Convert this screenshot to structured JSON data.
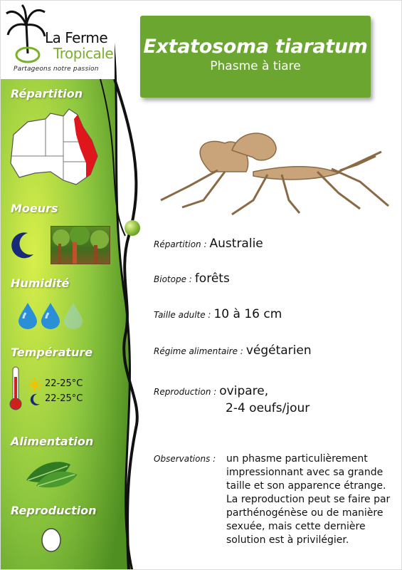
{
  "logo": {
    "line1": "La Ferme",
    "line2": "Tropicale",
    "tagline": "Partageons notre passion"
  },
  "header": {
    "species": "Extatosoma tiaratum",
    "common_name": "Phasme à tiare"
  },
  "sidebar": {
    "repartition_label": "Répartition",
    "moeurs_label": "Moeurs",
    "humidite_label": "Humidité",
    "humidity_level": {
      "filled": 2,
      "total": 3
    },
    "temperature_label": "Température",
    "temp_day": "22-25°C",
    "temp_night": "22-25°C",
    "alimentation_label": "Alimentation",
    "reproduction_label": "Reproduction"
  },
  "info": {
    "repartition_label": "Répartition :",
    "repartition_value": "Australie",
    "biotope_label": "Biotope :",
    "biotope_value": "forêts",
    "taille_label": "Taille adulte :",
    "taille_value": "10 à 16 cm",
    "regime_label": "Régime alimentaire :",
    "regime_value": "végétarien",
    "reproduction_label": "Reproduction :",
    "reproduction_value_1": "ovipare,",
    "reproduction_value_2": "2-4 oeufs/jour",
    "observations_label": "Observations :",
    "observations_value": "un phasme particulièrement impressionnant avec sa grande taille et son apparence étrange. La reproduction peut se faire par parthénogénèse ou de manière sexuée, mais cette dernière solution est à privilégier."
  },
  "colors": {
    "accent_green": "#6aa630",
    "sidebar_green": "#8cc63f",
    "range_red": "#e0161d"
  }
}
